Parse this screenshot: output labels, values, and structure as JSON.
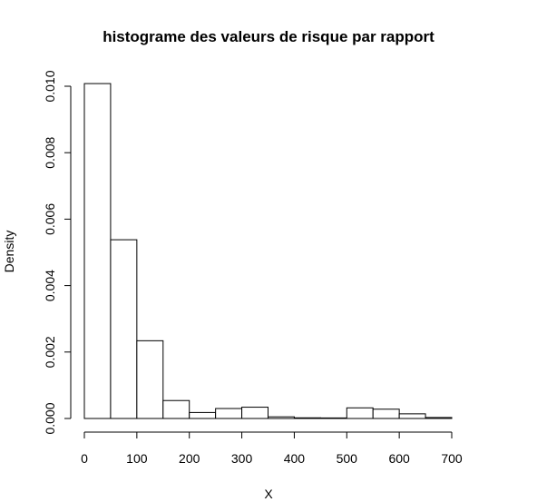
{
  "chart_data": {
    "type": "bar",
    "title": "histograme des valeurs de risque par rapport",
    "xlabel": "X",
    "ylabel": "Density",
    "xlim": [
      0,
      700
    ],
    "ylim": [
      0,
      0.01
    ],
    "bin_width": 50,
    "bins": [
      {
        "start": 0,
        "end": 50,
        "density": 0.01008
      },
      {
        "start": 50,
        "end": 100,
        "density": 0.00538
      },
      {
        "start": 100,
        "end": 150,
        "density": 0.00234
      },
      {
        "start": 150,
        "end": 200,
        "density": 0.00054
      },
      {
        "start": 200,
        "end": 250,
        "density": 0.00018
      },
      {
        "start": 250,
        "end": 300,
        "density": 0.0003
      },
      {
        "start": 300,
        "end": 350,
        "density": 0.00034
      },
      {
        "start": 350,
        "end": 400,
        "density": 5e-05
      },
      {
        "start": 400,
        "end": 450,
        "density": 2e-05
      },
      {
        "start": 450,
        "end": 500,
        "density": 0.0
      },
      {
        "start": 500,
        "end": 550,
        "density": 0.00032
      },
      {
        "start": 550,
        "end": 600,
        "density": 0.00028
      },
      {
        "start": 600,
        "end": 650,
        "density": 0.00014
      },
      {
        "start": 650,
        "end": 700,
        "density": 3e-05
      }
    ],
    "x_ticks": [
      "0",
      "100",
      "200",
      "300",
      "400",
      "500",
      "600",
      "700"
    ],
    "y_ticks": [
      "0.000",
      "0.002",
      "0.004",
      "0.006",
      "0.008",
      "0.010"
    ],
    "grid": false,
    "legend": "none",
    "colors": {
      "bar_fill": "#ffffff",
      "bar_stroke": "#000000",
      "axis": "#000000"
    }
  }
}
